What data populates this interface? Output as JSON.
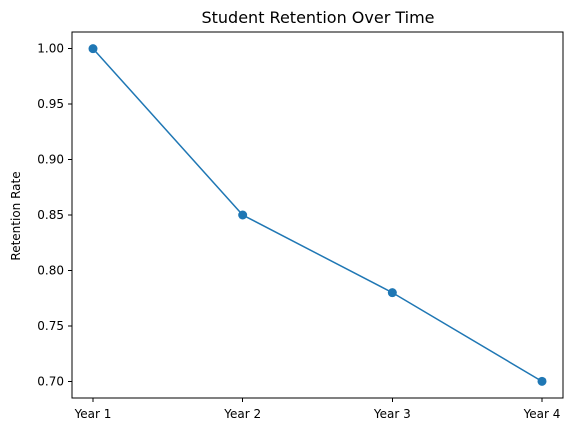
{
  "chart_data": {
    "type": "line",
    "title": "Student Retention Over Time",
    "xlabel": "",
    "ylabel": "Retention Rate",
    "categories": [
      "Year 1",
      "Year 2",
      "Year 3",
      "Year 4"
    ],
    "series": [
      {
        "name": "",
        "values": [
          1.0,
          0.85,
          0.78,
          0.7
        ],
        "color": "#1f77b4",
        "marker": "circle"
      }
    ],
    "ylim": [
      0.685,
      1.015
    ],
    "y_ticks": [
      "0.70",
      "0.75",
      "0.80",
      "0.85",
      "0.90",
      "0.95",
      "1.00"
    ],
    "grid": false,
    "legend": false
  }
}
